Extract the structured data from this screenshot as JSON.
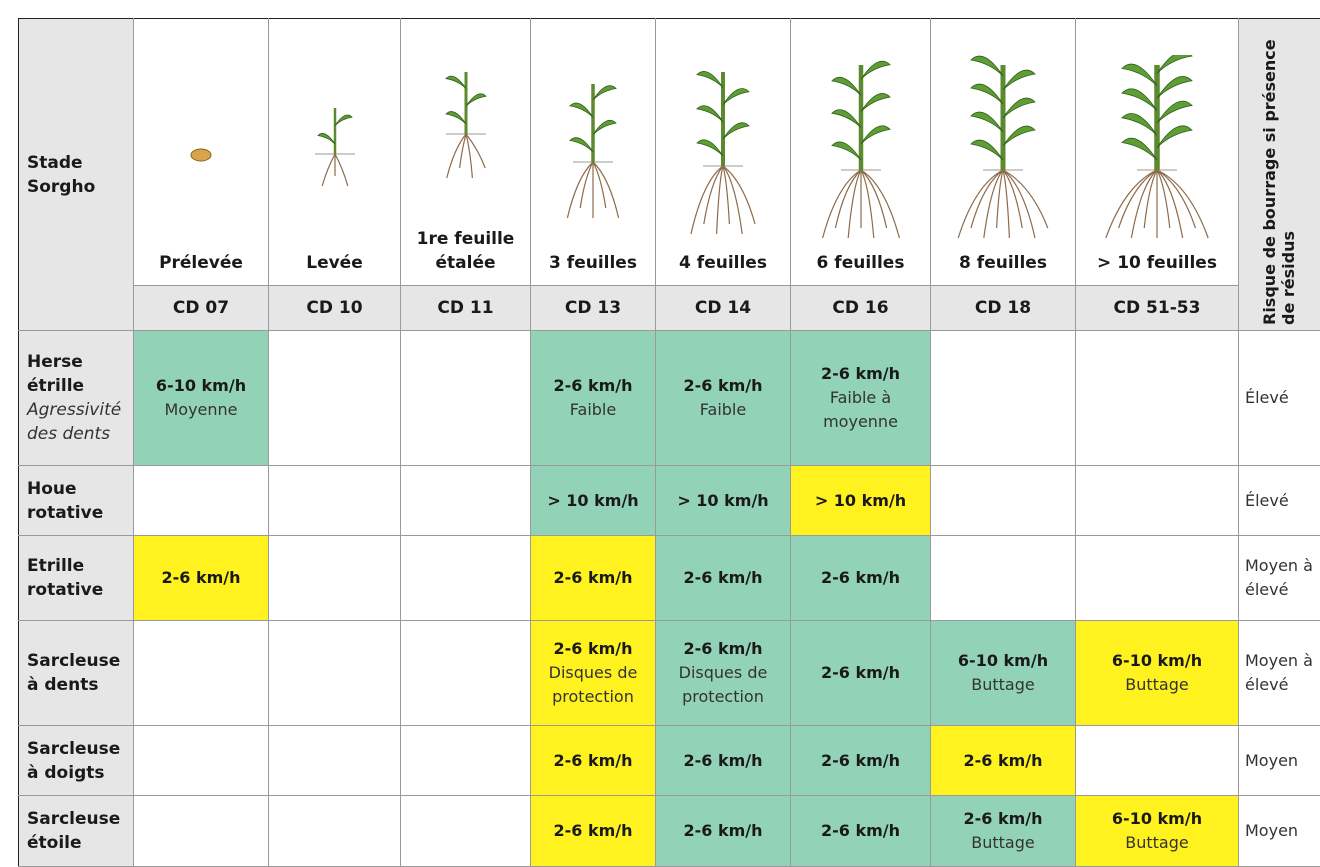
{
  "header": {
    "stage_label": "Stade Sorgho",
    "risk_label": "Risque de bourrage si présence de résidus",
    "stages": [
      {
        "name": "Prélevée",
        "code": "CD 07"
      },
      {
        "name": "Levée",
        "code": "CD 10"
      },
      {
        "name": "1re feuille étalée",
        "code": "CD 11"
      },
      {
        "name": "3 feuilles",
        "code": "CD 13"
      },
      {
        "name": "4 feuilles",
        "code": "CD 14"
      },
      {
        "name": "6 feuilles",
        "code": "CD 16"
      },
      {
        "name": "8 feuilles",
        "code": "CD 18"
      },
      {
        "name": "> 10 feuilles",
        "code": "CD 51-53"
      }
    ]
  },
  "rows": [
    {
      "tool": "Herse étrille",
      "tool_note": "Agressivité des dents",
      "risk": "Élevé",
      "cells": [
        {
          "speed": "6-10 km/h",
          "note": "Moyenne",
          "color": "#92d2b7"
        },
        null,
        null,
        {
          "speed": "2-6 km/h",
          "note": "Faible",
          "color": "#92d2b7"
        },
        {
          "speed": "2-6 km/h",
          "note": "Faible",
          "color": "#92d2b7"
        },
        {
          "speed": "2-6 km/h",
          "note": "Faible à moyenne",
          "color": "#92d2b7"
        },
        null,
        null
      ]
    },
    {
      "tool": "Houe rotative",
      "risk": "Élevé",
      "cells": [
        null,
        null,
        null,
        {
          "speed": "> 10 km/h",
          "color": "#92d2b7"
        },
        {
          "speed": "> 10 km/h",
          "color": "#92d2b7"
        },
        {
          "speed": "> 10 km/h",
          "color": "#fff21f"
        },
        null,
        null
      ]
    },
    {
      "tool": "Etrille rotative",
      "risk": "Moyen à élevé",
      "cells": [
        {
          "speed": "2-6 km/h",
          "color": "#fff21f"
        },
        null,
        null,
        {
          "speed": "2-6 km/h",
          "color": "#fff21f"
        },
        {
          "speed": "2-6 km/h",
          "color": "#92d2b7"
        },
        {
          "speed": "2-6 km/h",
          "color": "#92d2b7"
        },
        null,
        null
      ]
    },
    {
      "tool": "Sarcleuse à dents",
      "risk": "Moyen à élevé",
      "cells": [
        null,
        null,
        null,
        {
          "speed": "2-6 km/h",
          "note": "Disques de protection",
          "color": "#fff21f"
        },
        {
          "speed": "2-6 km/h",
          "note": "Disques de protection",
          "color": "#92d2b7"
        },
        {
          "speed": "2-6 km/h",
          "color": "#92d2b7"
        },
        {
          "speed": "6-10 km/h",
          "note": "Buttage",
          "color": "#92d2b7"
        },
        {
          "speed": "6-10 km/h",
          "note": "Buttage",
          "color": "#fff21f"
        }
      ]
    },
    {
      "tool": "Sarcleuse à doigts",
      "risk": "Moyen",
      "cells": [
        null,
        null,
        null,
        {
          "speed": "2-6 km/h",
          "color": "#fff21f"
        },
        {
          "speed": "2-6 km/h",
          "color": "#92d2b7"
        },
        {
          "speed": "2-6 km/h",
          "color": "#92d2b7"
        },
        {
          "speed": "2-6 km/h",
          "color": "#fff21f"
        },
        null
      ]
    },
    {
      "tool": "Sarcleuse étoile",
      "risk": "Moyen",
      "cells": [
        null,
        null,
        null,
        {
          "speed": "2-6 km/h",
          "color": "#fff21f"
        },
        {
          "speed": "2-6 km/h",
          "color": "#92d2b7"
        },
        {
          "speed": "2-6 km/h",
          "color": "#92d2b7"
        },
        {
          "speed": "2-6 km/h",
          "note": "Buttage",
          "color": "#92d2b7"
        },
        {
          "speed": "6-10 km/h",
          "note": "Buttage",
          "color": "#fff21f"
        }
      ]
    }
  ]
}
